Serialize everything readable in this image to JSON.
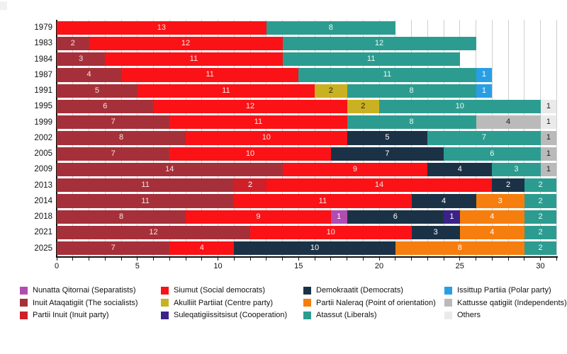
{
  "page": {
    "background": "#ffffff"
  },
  "chart_data": {
    "type": "bar",
    "stacked": true,
    "orientation": "horizontal",
    "title": "",
    "xlabel": "",
    "ylabel": "",
    "xlim": [
      0,
      31
    ],
    "x_ticks": [
      0,
      5,
      10,
      15,
      20,
      25,
      30
    ],
    "grid": "vertical gridlines at every seat from 1 to 31",
    "legend_position": "bottom",
    "gridline_color": "#cfcfcf",
    "axis_color": "#111111",
    "parties": [
      {
        "id": "nunatta_qitornai",
        "label": "Nunatta Qitornai (Separatists)",
        "color": "#b14cb1",
        "text_color": "#ffffff"
      },
      {
        "id": "inuit_ataqatigiit",
        "label": "Inuit Ataqatigiit (The socialists)",
        "color": "#a6303a",
        "text_color": "#f4e3e3"
      },
      {
        "id": "partii_inuit",
        "label": "Partii Inuit (Inuit party)",
        "color": "#ce2029",
        "text_color": "#ffffff"
      },
      {
        "id": "siumut",
        "label": "Siumut (Social democrats)",
        "color": "#fa1216",
        "text_color": "#f9e9e4"
      },
      {
        "id": "akulliit",
        "label": "Akulliit Partiiat (Centre party)",
        "color": "#c9b122",
        "text_color": "#222222"
      },
      {
        "id": "suleqatigiissitsisut",
        "label": "Suleqatigiissitsisut (Cooperation)",
        "color": "#3b2287",
        "text_color": "#ffffff"
      },
      {
        "id": "demokraatit",
        "label": "Demokraatit (Democrats)",
        "color": "#1b3246",
        "text_color": "#ffffff"
      },
      {
        "id": "partii_naleraq",
        "label": "Partii Naleraq (Point of orientation)",
        "color": "#f67e0e",
        "text_color": "#ffffff"
      },
      {
        "id": "atassut",
        "label": "Atassut (Liberals)",
        "color": "#2d9c90",
        "text_color": "#eafaf6"
      },
      {
        "id": "issittup_partiia",
        "label": "Issittup Partiia (Polar party)",
        "color": "#289fe5",
        "text_color": "#ffffff"
      },
      {
        "id": "kattusseqatigiit",
        "label": "Kattusse qatigiit (Independents)",
        "color": "#bababa",
        "text_color": "#1a1a1a"
      },
      {
        "id": "others",
        "label": "Others",
        "color": "#eaeaea",
        "text_color": "#1a1a1a"
      }
    ],
    "legend_columns": [
      [
        "nunatta_qitornai",
        "inuit_ataqatigiit",
        "partii_inuit"
      ],
      [
        "siumut",
        "akulliit",
        "suleqatigiissitsisut"
      ],
      [
        "demokraatit",
        "partii_naleraq",
        "atassut"
      ],
      [
        "issittup_partiia",
        "kattusseqatigiit",
        "others"
      ]
    ],
    "rows": [
      {
        "year": "1979",
        "segments": [
          [
            "siumut",
            13
          ],
          [
            "atassut",
            8
          ]
        ]
      },
      {
        "year": "1983",
        "segments": [
          [
            "inuit_ataqatigiit",
            2
          ],
          [
            "siumut",
            12
          ],
          [
            "atassut",
            12
          ]
        ]
      },
      {
        "year": "1984",
        "segments": [
          [
            "inuit_ataqatigiit",
            3
          ],
          [
            "siumut",
            11
          ],
          [
            "atassut",
            11
          ]
        ]
      },
      {
        "year": "1987",
        "segments": [
          [
            "inuit_ataqatigiit",
            4
          ],
          [
            "siumut",
            11
          ],
          [
            "atassut",
            11
          ],
          [
            "issittup_partiia",
            1
          ]
        ]
      },
      {
        "year": "1991",
        "segments": [
          [
            "inuit_ataqatigiit",
            5
          ],
          [
            "siumut",
            11
          ],
          [
            "akulliit",
            2
          ],
          [
            "atassut",
            8
          ],
          [
            "issittup_partiia",
            1
          ]
        ]
      },
      {
        "year": "1995",
        "segments": [
          [
            "inuit_ataqatigiit",
            6
          ],
          [
            "siumut",
            12
          ],
          [
            "akulliit",
            2
          ],
          [
            "atassut",
            10
          ],
          [
            "others",
            1
          ]
        ]
      },
      {
        "year": "1999",
        "segments": [
          [
            "inuit_ataqatigiit",
            7
          ],
          [
            "siumut",
            11
          ],
          [
            "atassut",
            8
          ],
          [
            "kattusseqatigiit",
            4
          ],
          [
            "others",
            1
          ]
        ]
      },
      {
        "year": "2002",
        "segments": [
          [
            "inuit_ataqatigiit",
            8
          ],
          [
            "siumut",
            10
          ],
          [
            "demokraatit",
            5
          ],
          [
            "atassut",
            7
          ],
          [
            "kattusseqatigiit",
            1
          ]
        ]
      },
      {
        "year": "2005",
        "segments": [
          [
            "inuit_ataqatigiit",
            7
          ],
          [
            "siumut",
            10
          ],
          [
            "demokraatit",
            7
          ],
          [
            "atassut",
            6
          ],
          [
            "kattusseqatigiit",
            1
          ]
        ]
      },
      {
        "year": "2009",
        "segments": [
          [
            "inuit_ataqatigiit",
            14
          ],
          [
            "siumut",
            9
          ],
          [
            "demokraatit",
            4
          ],
          [
            "atassut",
            3
          ],
          [
            "kattusseqatigiit",
            1
          ]
        ]
      },
      {
        "year": "2013",
        "segments": [
          [
            "inuit_ataqatigiit",
            11
          ],
          [
            "partii_inuit",
            2
          ],
          [
            "siumut",
            14
          ],
          [
            "demokraatit",
            2
          ],
          [
            "atassut",
            2
          ]
        ]
      },
      {
        "year": "2014",
        "segments": [
          [
            "inuit_ataqatigiit",
            11
          ],
          [
            "siumut",
            11
          ],
          [
            "demokraatit",
            4
          ],
          [
            "partii_naleraq",
            3
          ],
          [
            "atassut",
            2
          ]
        ]
      },
      {
        "year": "2018",
        "segments": [
          [
            "inuit_ataqatigiit",
            8
          ],
          [
            "siumut",
            9
          ],
          [
            "nunatta_qitornai",
            1
          ],
          [
            "demokraatit",
            6
          ],
          [
            "suleqatigiissitsisut",
            1
          ],
          [
            "partii_naleraq",
            4
          ],
          [
            "atassut",
            2
          ]
        ]
      },
      {
        "year": "2021",
        "segments": [
          [
            "inuit_ataqatigiit",
            12
          ],
          [
            "siumut",
            10
          ],
          [
            "demokraatit",
            3
          ],
          [
            "partii_naleraq",
            4
          ],
          [
            "atassut",
            2
          ]
        ]
      },
      {
        "year": "2025",
        "segments": [
          [
            "inuit_ataqatigiit",
            7
          ],
          [
            "siumut",
            4
          ],
          [
            "demokraatit",
            10
          ],
          [
            "partii_naleraq",
            8
          ],
          [
            "atassut",
            2
          ]
        ]
      }
    ]
  }
}
